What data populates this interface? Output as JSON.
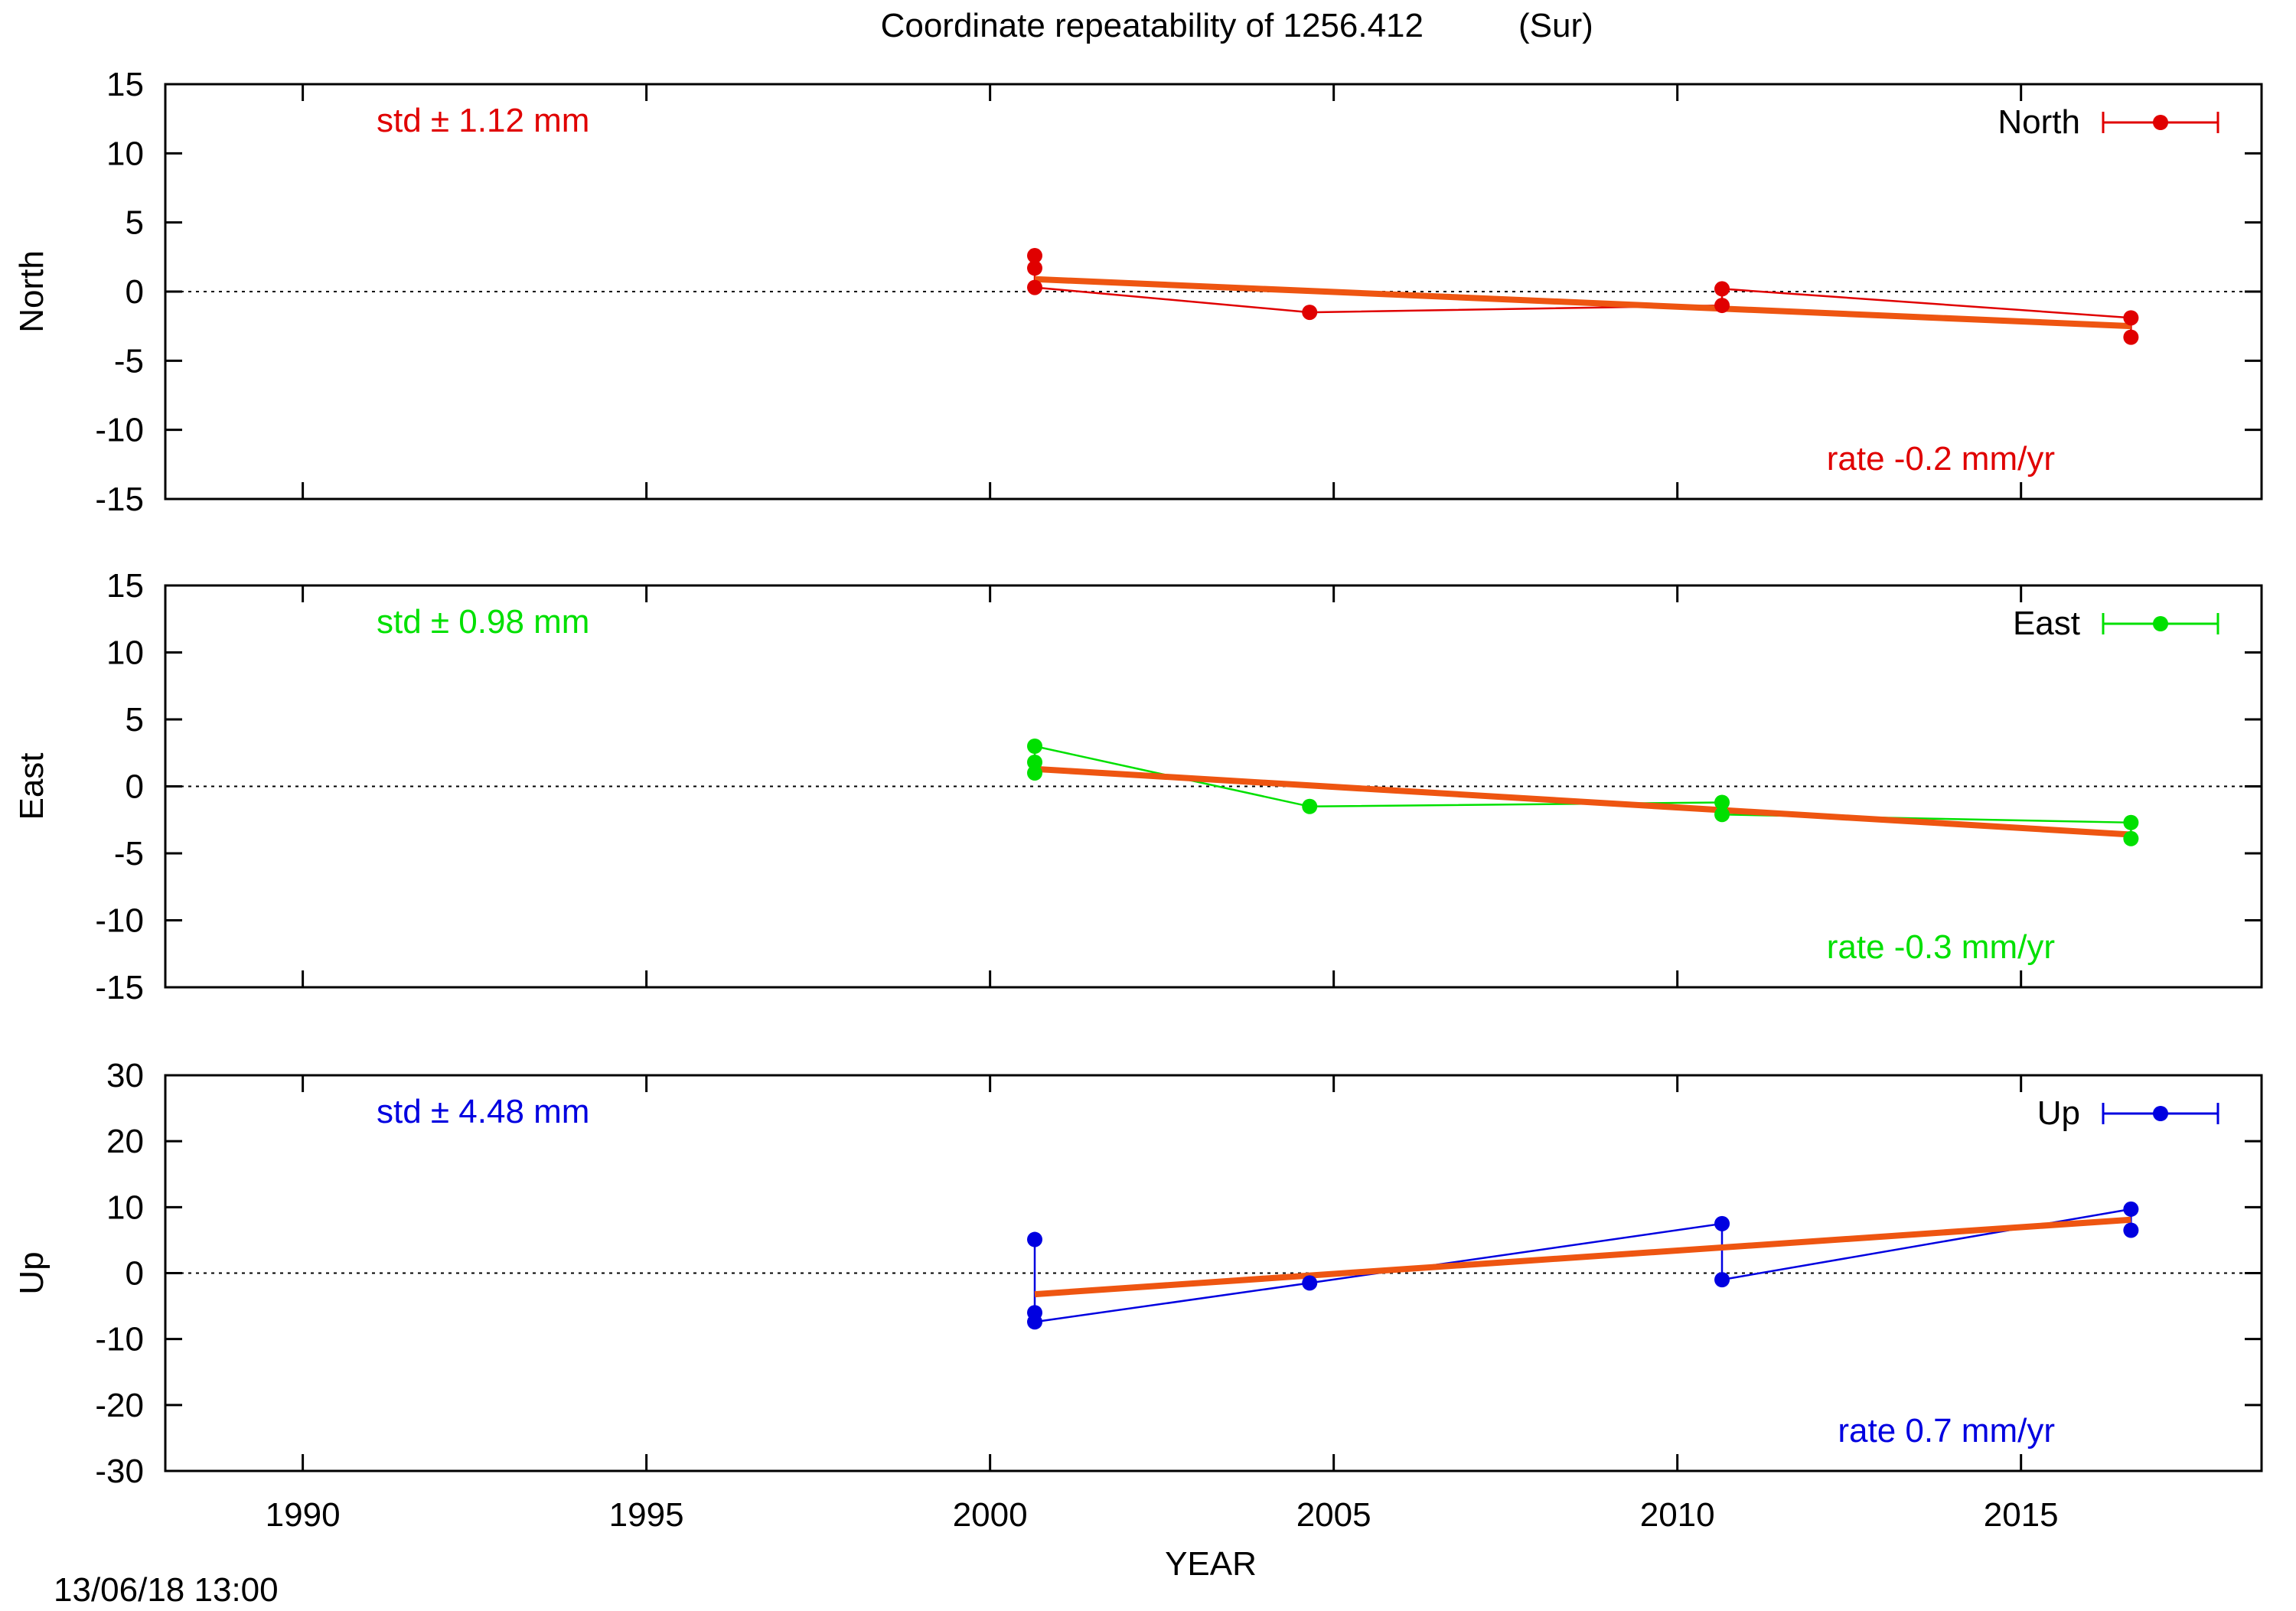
{
  "title_left": "Coordinate repeatability of 1256.412",
  "title_right": "(Sur)",
  "timestamp": "13/06/18 13:00",
  "chart_data": [
    {
      "type": "line",
      "component": "north",
      "ylabel": "North",
      "ylim": [
        -15,
        15
      ],
      "yticks": [
        15,
        10,
        5,
        0,
        -5,
        -10,
        -15
      ],
      "xlim": [
        1988.0,
        2018.5
      ],
      "color": "#e00000",
      "std_label": "std ± 1.12 mm",
      "rate_label": "rate -0.2 mm/yr",
      "legend": "North",
      "zero_line": true,
      "points": [
        {
          "x": 2000.65,
          "y": 2.6
        },
        {
          "x": 2000.65,
          "y": 1.7
        },
        {
          "x": 2000.65,
          "y": 0.3
        },
        {
          "x": 2004.65,
          "y": -1.5
        },
        {
          "x": 2010.65,
          "y": -1.0
        },
        {
          "x": 2010.65,
          "y": 0.2
        },
        {
          "x": 2016.6,
          "y": -1.9
        },
        {
          "x": 2016.6,
          "y": -3.3
        }
      ],
      "fit": [
        {
          "x": 2000.65,
          "y": 0.9
        },
        {
          "x": 2016.6,
          "y": -2.5
        }
      ]
    },
    {
      "type": "line",
      "component": "east",
      "ylabel": "East",
      "ylim": [
        -15,
        15
      ],
      "yticks": [
        15,
        10,
        5,
        0,
        -5,
        -10,
        -15
      ],
      "xlim": [
        1988.0,
        2018.5
      ],
      "color": "#00e000",
      "std_label": "std ± 0.98 mm",
      "rate_label": "rate -0.3 mm/yr",
      "legend": "East",
      "zero_line": true,
      "points": [
        {
          "x": 2000.65,
          "y": 1.8
        },
        {
          "x": 2000.65,
          "y": 1.0
        },
        {
          "x": 2000.65,
          "y": 3.0
        },
        {
          "x": 2004.65,
          "y": -1.5
        },
        {
          "x": 2010.65,
          "y": -1.2
        },
        {
          "x": 2010.65,
          "y": -2.1
        },
        {
          "x": 2016.6,
          "y": -2.7
        },
        {
          "x": 2016.6,
          "y": -3.9
        }
      ],
      "fit": [
        {
          "x": 2000.65,
          "y": 1.3
        },
        {
          "x": 2016.6,
          "y": -3.6
        }
      ]
    },
    {
      "type": "line",
      "component": "up",
      "ylabel": "Up",
      "ylim": [
        -30,
        30
      ],
      "yticks": [
        30,
        20,
        10,
        0,
        -10,
        -20,
        -30
      ],
      "xlim": [
        1988.0,
        2018.5
      ],
      "color": "#0000e0",
      "std_label": "std ± 4.48 mm",
      "rate_label": "rate  0.7 mm/yr",
      "legend": "Up",
      "zero_line": true,
      "points": [
        {
          "x": 2000.65,
          "y": 5.1
        },
        {
          "x": 2000.65,
          "y": -6.0
        },
        {
          "x": 2000.65,
          "y": -7.4
        },
        {
          "x": 2004.65,
          "y": -1.5
        },
        {
          "x": 2010.65,
          "y": 7.5
        },
        {
          "x": 2010.65,
          "y": -1.0
        },
        {
          "x": 2016.6,
          "y": 9.7
        },
        {
          "x": 2016.6,
          "y": 6.5
        }
      ],
      "fit": [
        {
          "x": 2000.65,
          "y": -3.2
        },
        {
          "x": 2016.6,
          "y": 8.1
        }
      ]
    }
  ],
  "x_axis": {
    "label": "YEAR",
    "ticks": [
      1990,
      1995,
      2000,
      2005,
      2010,
      2015
    ]
  },
  "fit_color": "#ee5511"
}
